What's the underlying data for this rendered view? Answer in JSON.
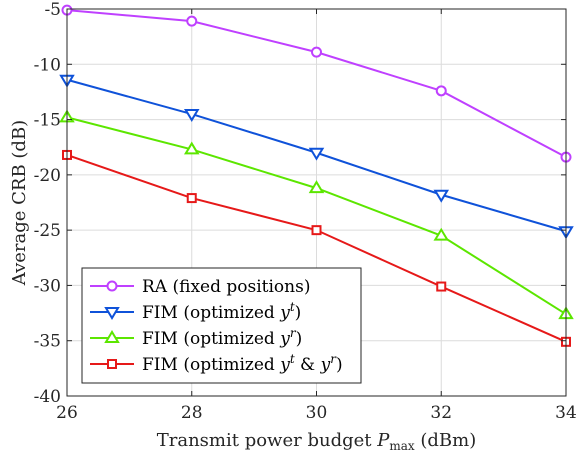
{
  "chart_data": {
    "type": "line",
    "x": [
      26,
      28,
      30,
      32,
      34
    ],
    "xlim": [
      26,
      34
    ],
    "ylim": [
      -40,
      -5
    ],
    "xticks": [
      "26",
      "28",
      "30",
      "32",
      "34"
    ],
    "yticks": [
      "-5",
      "-10",
      "-15",
      "-20",
      "-25",
      "-30",
      "-35",
      "-40"
    ],
    "xlabel_prefix": "Transmit power budget ",
    "xlabel_symbol": "P",
    "xlabel_subscript": "max",
    "xlabel_suffix": " (dBm)",
    "ylabel": "Average CRB (dB)",
    "grid": true,
    "legend_position": "bottom-left",
    "series": [
      {
        "name": "RA (fixed positions)",
        "label_parts": [
          "RA (fixed positions)"
        ],
        "color": "#bf40ff",
        "marker": "circle",
        "values": [
          -5.1,
          -6.1,
          -8.9,
          -12.4,
          -18.4
        ]
      },
      {
        "name": "FIM (optimized y^t)",
        "label_parts": [
          "FIM (optimized ",
          "y",
          "t",
          ")"
        ],
        "color": "#0f52d9",
        "marker": "triangle-down",
        "values": [
          -11.4,
          -14.5,
          -18.0,
          -21.8,
          -25.1
        ]
      },
      {
        "name": "FIM (optimized y^r)",
        "label_parts": [
          "FIM (optimized ",
          "y",
          "r",
          ")"
        ],
        "color": "#5ce600",
        "marker": "triangle-up",
        "values": [
          -14.8,
          -17.7,
          -21.2,
          -25.5,
          -32.6
        ]
      },
      {
        "name": "FIM (optimized y^t & y^r)",
        "label_parts": [
          "FIM (optimized ",
          "y",
          "t",
          " & ",
          "y",
          "r",
          ")"
        ],
        "color": "#e61919",
        "marker": "square",
        "values": [
          -18.2,
          -22.1,
          -25.0,
          -30.1,
          -35.1
        ]
      }
    ]
  }
}
